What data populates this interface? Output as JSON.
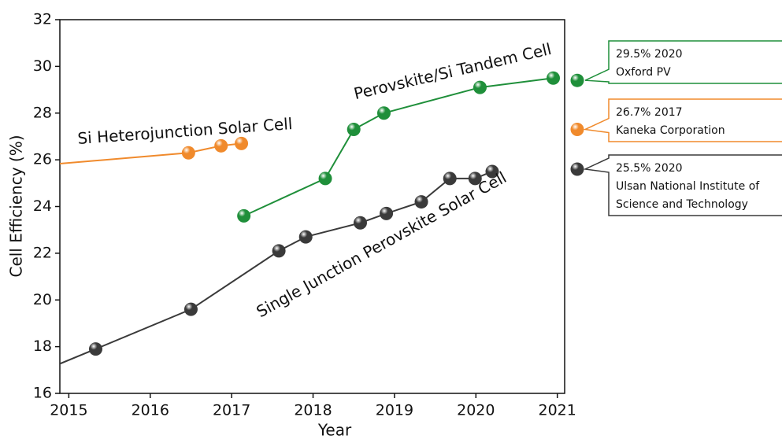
{
  "chart_data": {
    "type": "line",
    "xlabel": "Year",
    "ylabel": "Cell Efficiency (%)",
    "xlim": [
      2014.89,
      2021.09
    ],
    "xticks": [
      2015,
      2016,
      2017,
      2018,
      2019,
      2020,
      2021
    ],
    "ylim": [
      16,
      32
    ],
    "yticks": [
      16,
      18,
      20,
      22,
      24,
      26,
      28,
      30,
      32
    ],
    "series": [
      {
        "name": "Si Heterojunction Solar Cell",
        "color": "#f08a2c",
        "x": [
          2014.6,
          2016.47,
          2016.87,
          2017.12
        ],
        "values": [
          25.75,
          26.3,
          26.6,
          26.7
        ]
      },
      {
        "name": "Perovskite/Si Tandem Cell",
        "color": "#1f8f3a",
        "x": [
          2017.15,
          2018.15,
          2018.5,
          2018.87,
          2020.05,
          2020.95
        ],
        "values": [
          23.6,
          25.2,
          27.3,
          28.0,
          29.1,
          29.5
        ]
      },
      {
        "name": "Single Junction Perovskite Solar Cell",
        "color": "#3a3a3a",
        "x": [
          2014.6,
          2015.33,
          2016.5,
          2017.58,
          2017.91,
          2018.58,
          2018.9,
          2019.33,
          2019.68,
          2019.99,
          2020.2
        ],
        "values": [
          16.85,
          17.9,
          19.6,
          22.1,
          22.7,
          23.3,
          23.7,
          24.2,
          25.2,
          25.2,
          25.5
        ]
      }
    ],
    "annotations": [
      {
        "value": 29.4,
        "color": "#1f8f3a",
        "lines": [
          "29.5% 2020",
          "Oxford PV"
        ]
      },
      {
        "value": 27.3,
        "color": "#f08a2c",
        "lines": [
          "26.7% 2017",
          "Kaneka Corporation"
        ]
      },
      {
        "value": 25.6,
        "color": "#3a3a3a",
        "lines": [
          "25.5%  2020",
          "Ulsan National Institute of",
          "Science and Technology"
        ]
      }
    ]
  }
}
